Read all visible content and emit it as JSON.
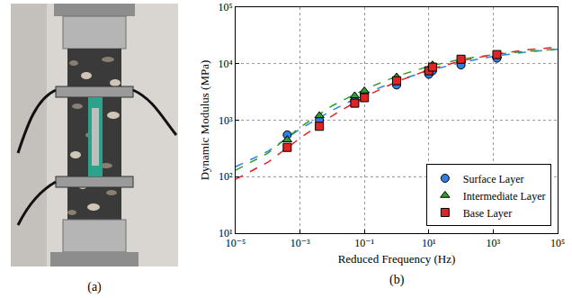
{
  "panels": {
    "a": {
      "label": "(a)"
    },
    "b": {
      "label": "(b)"
    }
  },
  "chart_data": {
    "type": "scatter",
    "x_label": "Reduced Frequency (Hz)",
    "y_label": "Dynamic Modulus (MPa)",
    "log": true,
    "grid": true,
    "legend": "lower right",
    "xlim": [
      1e-05,
      100000
    ],
    "ylim": [
      10,
      100000
    ],
    "xticks": [
      {
        "value": 1e-05,
        "label": "10⁻⁵"
      },
      {
        "value": 0.001,
        "label": "10⁻³"
      },
      {
        "value": 0.1,
        "label": "10⁻¹"
      },
      {
        "value": 10,
        "label": "10¹"
      },
      {
        "value": 1000,
        "label": "10³"
      },
      {
        "value": 100000,
        "label": "10⁵"
      }
    ],
    "yticks": [
      {
        "value": 10,
        "label": "10¹"
      },
      {
        "value": 100,
        "label": "10²"
      },
      {
        "value": 1000,
        "label": "10³"
      },
      {
        "value": 10000,
        "label": "10⁴"
      },
      {
        "value": 100000,
        "label": "10⁵"
      }
    ],
    "series": [
      {
        "name": "Surface Layer",
        "color": "#2f7fe0",
        "marker": "circle",
        "x": [
          0.0004,
          0.004,
          0.05,
          0.1,
          1,
          10,
          13,
          100,
          1300
        ],
        "values": [
          550,
          1000,
          2200,
          2800,
          4200,
          6500,
          7500,
          9500,
          12500
        ],
        "fit": {
          "line_style": "dashed",
          "x": [
            1e-05,
            0.0001,
            0.001,
            0.01,
            0.1,
            1,
            10,
            100,
            1000,
            10000,
            100000
          ],
          "values": [
            150,
            280,
            700,
            1500,
            2900,
            5000,
            7500,
            10500,
            13500,
            16000,
            18000
          ]
        }
      },
      {
        "name": "Intermediate Layer",
        "color": "#2ca02c",
        "marker": "triangle",
        "x": [
          0.0004,
          0.004,
          0.05,
          0.1,
          1,
          10,
          13,
          100,
          1300
        ],
        "values": [
          450,
          1200,
          2700,
          3300,
          5800,
          8000,
          9500,
          11500,
          14000
        ],
        "fit": {
          "line_style": "dashed",
          "x": [
            1e-05,
            0.0001,
            0.001,
            0.01,
            0.1,
            1,
            10,
            100,
            1000,
            10000,
            100000
          ],
          "values": [
            130,
            260,
            750,
            1800,
            3500,
            6000,
            9000,
            12000,
            14500,
            16500,
            18000
          ]
        }
      },
      {
        "name": "Base Layer",
        "color": "#e02424",
        "marker": "square",
        "x": [
          0.0004,
          0.004,
          0.05,
          0.1,
          1,
          10,
          13,
          100,
          1300
        ],
        "values": [
          330,
          780,
          2000,
          2500,
          5000,
          7500,
          8700,
          12000,
          14500
        ],
        "fit": {
          "line_style": "dashed",
          "x": [
            1e-05,
            0.0001,
            0.001,
            0.01,
            0.1,
            1,
            10,
            100,
            1000,
            10000,
            100000
          ],
          "values": [
            90,
            180,
            480,
            1200,
            2600,
            4800,
            7800,
            11200,
            14500,
            17500,
            19500
          ]
        }
      }
    ]
  }
}
